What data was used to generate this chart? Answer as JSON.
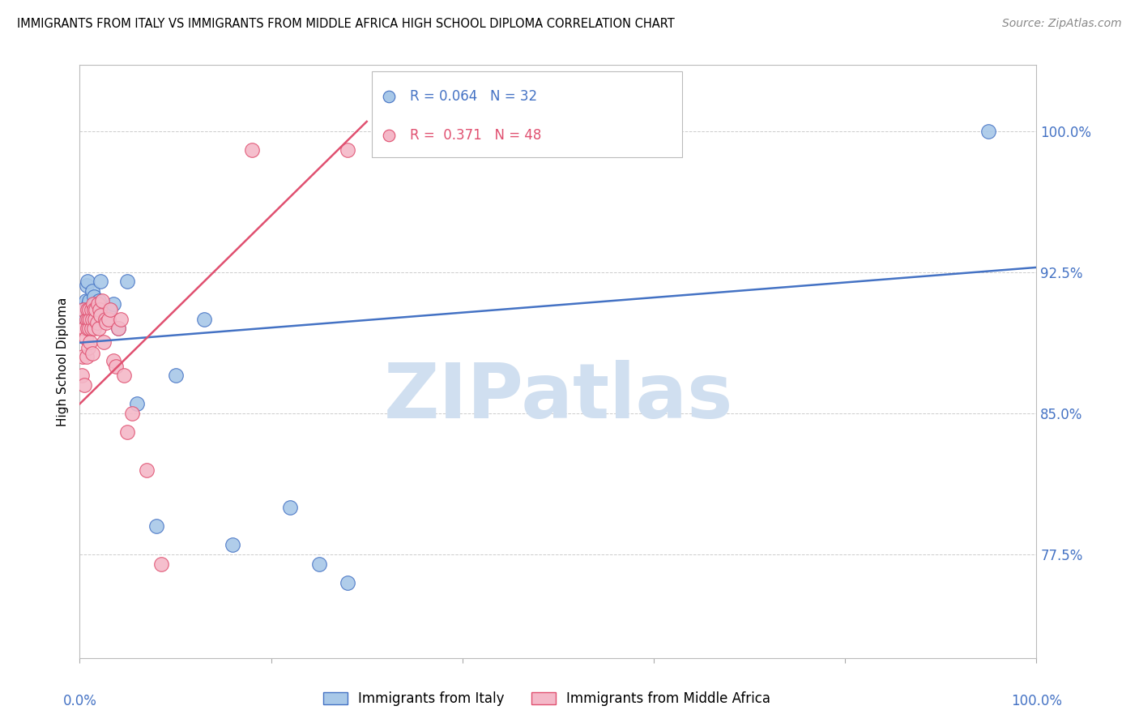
{
  "title": "IMMIGRANTS FROM ITALY VS IMMIGRANTS FROM MIDDLE AFRICA HIGH SCHOOL DIPLOMA CORRELATION CHART",
  "source": "Source: ZipAtlas.com",
  "ylabel": "High School Diploma",
  "ytick_labels": [
    "100.0%",
    "92.5%",
    "85.0%",
    "77.5%"
  ],
  "ytick_values": [
    1.0,
    0.925,
    0.85,
    0.775
  ],
  "xlim": [
    0.0,
    1.0
  ],
  "ylim": [
    0.72,
    1.035
  ],
  "italy_color": "#a8c8e8",
  "africa_color": "#f4b8c8",
  "italy_line_color": "#4472C4",
  "africa_line_color": "#e05070",
  "watermark": "ZIPatlas",
  "watermark_color": "#d0dff0",
  "background_color": "#ffffff",
  "grid_color": "#cccccc",
  "italy_R": 0.064,
  "africa_R": 0.371,
  "italy_N": 32,
  "africa_N": 48,
  "italy_scatter_x": [
    0.003,
    0.004,
    0.005,
    0.006,
    0.007,
    0.008,
    0.009,
    0.01,
    0.011,
    0.012,
    0.013,
    0.014,
    0.015,
    0.016,
    0.017,
    0.018,
    0.02,
    0.022,
    0.025,
    0.03,
    0.035,
    0.04,
    0.05,
    0.06,
    0.08,
    0.1,
    0.13,
    0.16,
    0.22,
    0.25,
    0.28,
    0.95
  ],
  "italy_scatter_y": [
    0.9,
    0.905,
    0.895,
    0.91,
    0.918,
    0.92,
    0.908,
    0.91,
    0.9,
    0.895,
    0.915,
    0.905,
    0.912,
    0.908,
    0.9,
    0.905,
    0.91,
    0.92,
    0.905,
    0.905,
    0.908,
    0.895,
    0.92,
    0.855,
    0.79,
    0.87,
    0.9,
    0.78,
    0.8,
    0.77,
    0.76,
    1.0
  ],
  "africa_scatter_x": [
    0.002,
    0.003,
    0.004,
    0.004,
    0.005,
    0.005,
    0.006,
    0.007,
    0.007,
    0.008,
    0.008,
    0.009,
    0.009,
    0.01,
    0.01,
    0.011,
    0.011,
    0.012,
    0.012,
    0.013,
    0.013,
    0.014,
    0.015,
    0.015,
    0.016,
    0.017,
    0.018,
    0.019,
    0.02,
    0.021,
    0.022,
    0.023,
    0.025,
    0.027,
    0.028,
    0.03,
    0.032,
    0.035,
    0.038,
    0.04,
    0.043,
    0.046,
    0.05,
    0.055,
    0.07,
    0.085,
    0.18,
    0.28
  ],
  "africa_scatter_y": [
    0.87,
    0.88,
    0.895,
    0.905,
    0.865,
    0.895,
    0.89,
    0.9,
    0.88,
    0.895,
    0.905,
    0.885,
    0.9,
    0.895,
    0.905,
    0.888,
    0.9,
    0.895,
    0.905,
    0.882,
    0.9,
    0.908,
    0.895,
    0.905,
    0.9,
    0.905,
    0.898,
    0.908,
    0.895,
    0.905,
    0.902,
    0.91,
    0.888,
    0.9,
    0.898,
    0.9,
    0.905,
    0.878,
    0.875,
    0.895,
    0.9,
    0.87,
    0.84,
    0.85,
    0.82,
    0.77,
    0.99,
    0.99
  ],
  "italy_trendline_x": [
    0.0,
    1.0
  ],
  "italy_trendline_y": [
    0.8875,
    0.9275
  ],
  "africa_trendline_x": [
    0.0,
    0.3
  ],
  "africa_trendline_y": [
    0.855,
    1.005
  ]
}
